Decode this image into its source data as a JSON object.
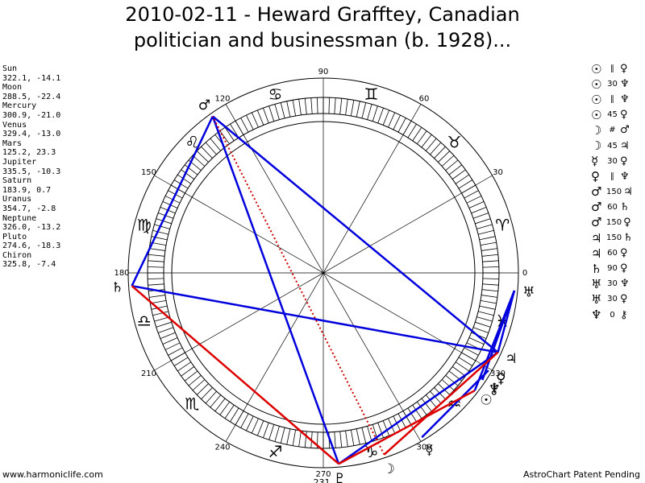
{
  "header": {
    "title_line1": "2010-02-11 - Heward Grafftey, Canadian",
    "title_line2": "politician and businessman (b. 1928)..."
  },
  "planets": [
    {
      "name": "Sun",
      "coords": "322.1, -14.1"
    },
    {
      "name": "Moon",
      "coords": "288.5, -22.4"
    },
    {
      "name": "Mercury",
      "coords": "300.9, -21.0"
    },
    {
      "name": "Venus",
      "coords": "329.4, -13.0"
    },
    {
      "name": "Mars",
      "coords": "125.2, 23.3"
    },
    {
      "name": "Jupiter",
      "coords": "335.5, -10.3"
    },
    {
      "name": "Saturn",
      "coords": "183.9, 0.7"
    },
    {
      "name": "Uranus",
      "coords": "354.7, -2.8"
    },
    {
      "name": "Neptune",
      "coords": "326.0, -13.2"
    },
    {
      "name": "Pluto",
      "coords": "274.6, -18.3"
    },
    {
      "name": "Chiron",
      "coords": "325.8, -7.4"
    }
  ],
  "aspects": [
    {
      "p1": "☉",
      "op": "∥",
      "p2": "♀"
    },
    {
      "p1": "☉",
      "op": "30",
      "p2": "♆"
    },
    {
      "p1": "☉",
      "op": "∥",
      "p2": "♆"
    },
    {
      "p1": "☉",
      "op": "45",
      "p2": "♀"
    },
    {
      "p1": "☽",
      "op": "#",
      "p2": "♂"
    },
    {
      "p1": "☽",
      "op": "45",
      "p2": "♃"
    },
    {
      "p1": "☿",
      "op": "30",
      "p2": "♀"
    },
    {
      "p1": "♀",
      "op": "∥",
      "p2": "♆"
    },
    {
      "p1": "♂",
      "op": "150",
      "p2": "♃"
    },
    {
      "p1": "♂",
      "op": "60",
      "p2": "♄"
    },
    {
      "p1": "♂",
      "op": "150",
      "p2": "♀"
    },
    {
      "p1": "♃",
      "op": "150",
      "p2": "♄"
    },
    {
      "p1": "♃",
      "op": "60",
      "p2": "♀"
    },
    {
      "p1": "♄",
      "op": "90",
      "p2": "♀"
    },
    {
      "p1": "♅",
      "op": "30",
      "p2": "♆"
    },
    {
      "p1": "♅",
      "op": "30",
      "p2": "♀"
    },
    {
      "p1": "♆",
      "op": "0",
      "p2": "⚷"
    }
  ],
  "wheel": {
    "degree_labels": [
      "0",
      "30",
      "60",
      "90",
      "120",
      "150",
      "180",
      "210",
      "240",
      "270",
      "300",
      "330"
    ],
    "extra_label": "231",
    "signs": [
      {
        "deg": 15,
        "glyph": "♈"
      },
      {
        "deg": 45,
        "glyph": "♉"
      },
      {
        "deg": 75,
        "glyph": "♊"
      },
      {
        "deg": 105,
        "glyph": "♋"
      },
      {
        "deg": 135,
        "glyph": "♌"
      },
      {
        "deg": 165,
        "glyph": "♍"
      },
      {
        "deg": 195,
        "glyph": "♎"
      },
      {
        "deg": 225,
        "glyph": "♏"
      },
      {
        "deg": 255,
        "glyph": "♐"
      },
      {
        "deg": 285,
        "glyph": "♑"
      },
      {
        "deg": 315,
        "glyph": "♒"
      },
      {
        "deg": 345,
        "glyph": "♓"
      }
    ],
    "bodies": [
      {
        "name": "Sun",
        "glyph": "☉",
        "lon": 322.1
      },
      {
        "name": "Moon",
        "glyph": "☽",
        "lon": 288.5
      },
      {
        "name": "Mercury",
        "glyph": "☿",
        "lon": 300.9
      },
      {
        "name": "Venus",
        "glyph": "♀",
        "lon": 329.4
      },
      {
        "name": "Mars",
        "glyph": "♂",
        "lon": 125.2
      },
      {
        "name": "Jupiter",
        "glyph": "♃",
        "lon": 335.5
      },
      {
        "name": "Saturn",
        "glyph": "♄",
        "lon": 183.9
      },
      {
        "name": "Uranus",
        "glyph": "♅",
        "lon": 354.7
      },
      {
        "name": "Neptune",
        "glyph": "♆",
        "lon": 326.0
      },
      {
        "name": "Pluto",
        "glyph": "♇",
        "lon": 274.6
      },
      {
        "name": "Chiron",
        "glyph": "⚷",
        "lon": 325.8
      }
    ],
    "aspect_lines": [
      {
        "a": "Mars",
        "b": "Saturn",
        "color": "#0000dd",
        "style": "solid"
      },
      {
        "a": "Mars",
        "b": "Jupiter",
        "color": "#0000dd",
        "style": "solid"
      },
      {
        "a": "Mars",
        "b": "Pluto",
        "color": "#0000dd",
        "style": "solid"
      },
      {
        "a": "Saturn",
        "b": "Jupiter",
        "color": "#0000dd",
        "style": "solid"
      },
      {
        "a": "Jupiter",
        "b": "Uranus",
        "color": "#0000dd",
        "style": "solid"
      },
      {
        "a": "Jupiter",
        "b": "Pluto",
        "color": "#0000dd",
        "style": "solid"
      },
      {
        "a": "Sun",
        "b": "Uranus",
        "color": "#0000dd",
        "style": "solid"
      },
      {
        "a": "Mercury",
        "b": "Venus",
        "color": "#0000dd",
        "style": "solid"
      },
      {
        "a": "Neptune",
        "b": "Uranus",
        "color": "#0000dd",
        "style": "solid"
      },
      {
        "a": "Saturn",
        "b": "Pluto",
        "color": "#dd0000",
        "style": "solid"
      },
      {
        "a": "Moon",
        "b": "Jupiter",
        "color": "#dd0000",
        "style": "solid"
      },
      {
        "a": "Sun",
        "b": "Pluto",
        "color": "#dd0000",
        "style": "solid"
      },
      {
        "a": "Moon",
        "b": "Mars",
        "color": "#cc0000",
        "style": "dotted"
      }
    ]
  },
  "footer": {
    "left": "www.harmoniclife.com",
    "right": "AstroChart Patent Pending"
  }
}
